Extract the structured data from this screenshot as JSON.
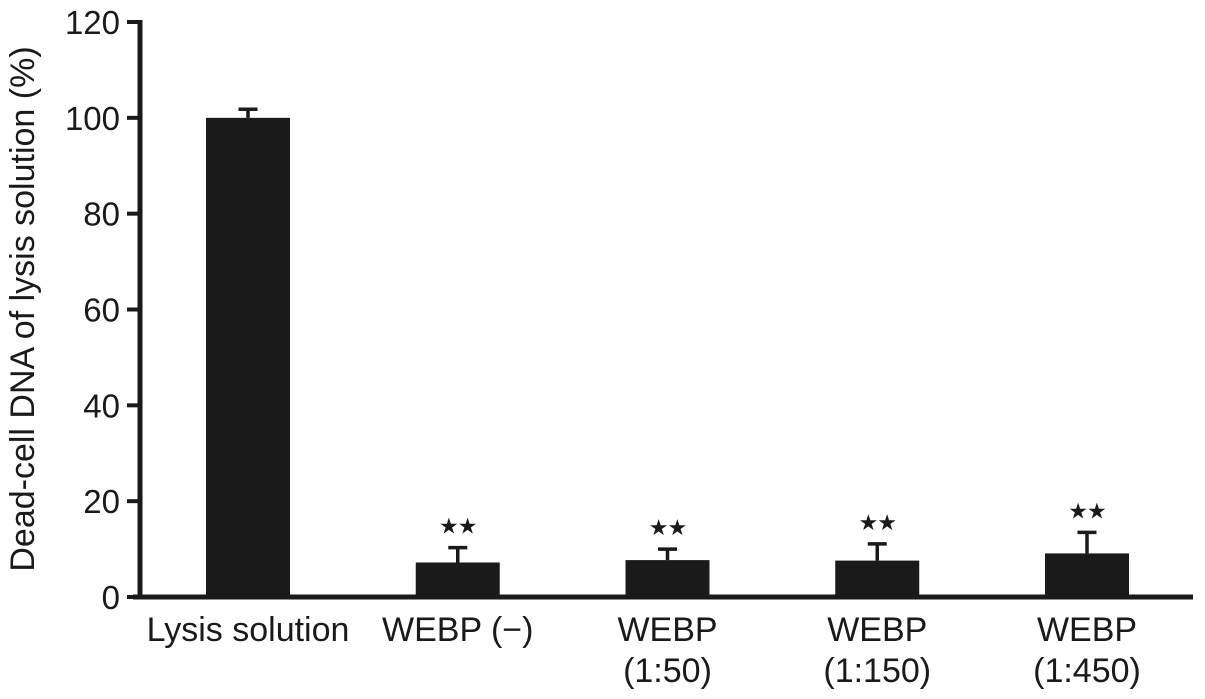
{
  "figure": {
    "background_color": "#ffffff"
  },
  "chart_data": {
    "type": "bar",
    "title": "",
    "xlabel": "",
    "ylabel": "Dead-cell DNA of lysis solution (%)",
    "ylim": [
      0,
      120
    ],
    "yticks": [
      0,
      20,
      40,
      60,
      80,
      100,
      120
    ],
    "grid": false,
    "legend": "none",
    "bar_color": "#1a1a1a",
    "axis_color": "#1a1a1a",
    "categories": [
      [
        "Lysis solution"
      ],
      [
        "WEBP (−)"
      ],
      [
        "WEBP",
        "(1:50)"
      ],
      [
        "WEBP",
        "(1:150)"
      ],
      [
        "WEBP",
        "(1:450)"
      ]
    ],
    "values": [
      100,
      7.2,
      7.7,
      7.6,
      9.1
    ],
    "errors": [
      1.8,
      3.1,
      2.3,
      3.5,
      4.4
    ],
    "significance": [
      "",
      "★★",
      "★★",
      "★★",
      "★★"
    ]
  }
}
